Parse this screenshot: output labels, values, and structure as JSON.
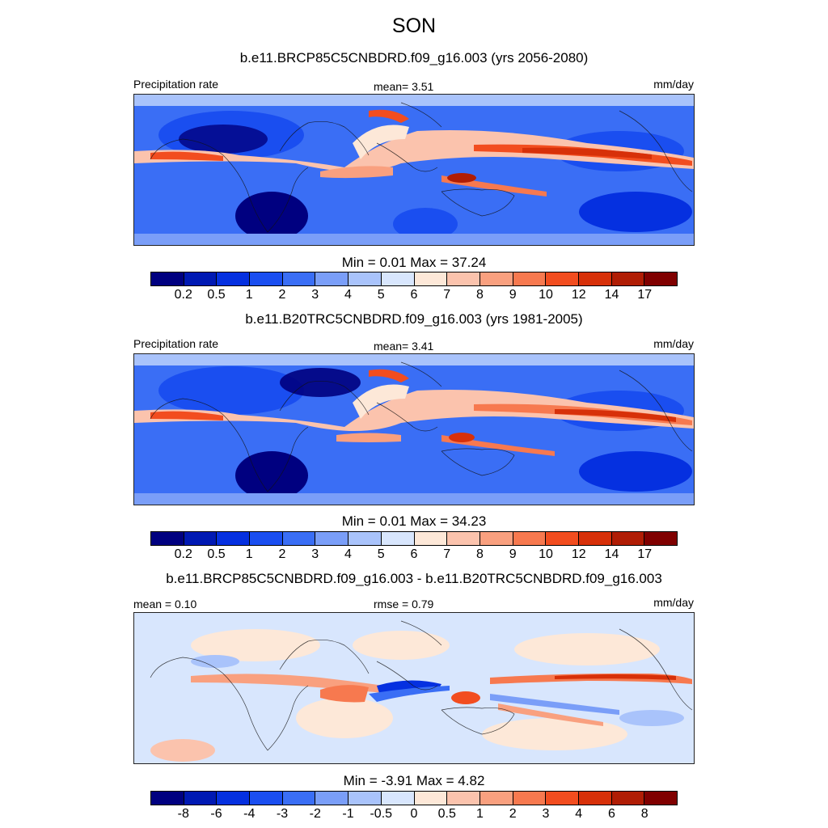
{
  "season_title": "SON",
  "panels": [
    {
      "case_title": "b.e11.BRCP85C5CNBDRD.f09_g16.003 (yrs 2056-2080)",
      "left_label": "Precipitation rate",
      "center_label": "mean=   3.51",
      "units": "mm/day",
      "minmax": "Min =   0.01 Max =  37.24",
      "variable": "Precipitation rate",
      "mean": 3.51,
      "min": 0.01,
      "max": 37.24
    },
    {
      "case_title": "b.e11.B20TRC5CNBDRD.f09_g16.003 (yrs 1981-2005)",
      "left_label": "Precipitation rate",
      "center_label": "mean=   3.41",
      "units": "mm/day",
      "minmax": "Min =   0.01 Max =  34.23",
      "variable": "Precipitation rate",
      "mean": 3.41,
      "min": 0.01,
      "max": 34.23
    },
    {
      "case_title": "b.e11.BRCP85C5CNBDRD.f09_g16.003 - b.e11.B20TRC5CNBDRD.f09_g16.003",
      "left_label": "mean =   0.10",
      "center_label": "rmse =   0.79",
      "units": "mm/day",
      "minmax": "Min =  -3.91 Max =   4.82",
      "mean": 0.1,
      "rmse": 0.79,
      "min": -3.91,
      "max": 4.82
    }
  ],
  "colorbars": {
    "precip": {
      "ticks": [
        "0.2",
        "0.5",
        "1",
        "2",
        "3",
        "4",
        "5",
        "6",
        "7",
        "8",
        "9",
        "10",
        "12",
        "14",
        "17"
      ],
      "colors": [
        "#000080",
        "#0019b3",
        "#0530e0",
        "#1a4ef0",
        "#3a6ef5",
        "#7a9ef8",
        "#a9c3fb",
        "#d8e6fd",
        "#fde8d8",
        "#fbc3ad",
        "#f9a07f",
        "#f7794f",
        "#f24d1f",
        "#d73009",
        "#b01d05",
        "#800000"
      ]
    },
    "diff": {
      "ticks": [
        "-8",
        "-6",
        "-4",
        "-3",
        "-2",
        "-1",
        "-0.5",
        "0",
        "0.5",
        "1",
        "2",
        "3",
        "4",
        "6",
        "8"
      ],
      "colors": [
        "#000080",
        "#0019b3",
        "#0530e0",
        "#1a4ef0",
        "#3a6ef5",
        "#7a9ef8",
        "#a9c3fb",
        "#d8e6fd",
        "#fde8d8",
        "#fbc3ad",
        "#f9a07f",
        "#f7794f",
        "#f24d1f",
        "#d73009",
        "#b01d05",
        "#800000"
      ]
    }
  },
  "palette": {
    "dark_blue": "#000080",
    "blue": "#1a4ef0",
    "mid_blue": "#3a6ef5",
    "light_blue": "#7a9ef8",
    "pale_blue": "#d8e6fd",
    "pale_red": "#fde8d8",
    "salmon": "#f9a07f",
    "orange_red": "#f24d1f",
    "dark_red": "#b01d05"
  }
}
